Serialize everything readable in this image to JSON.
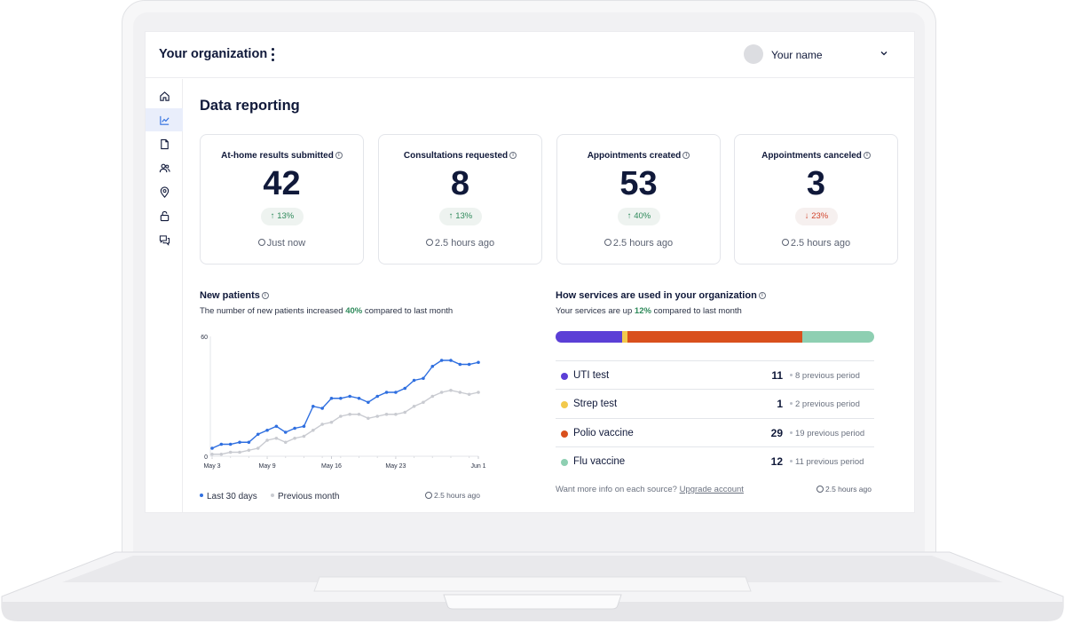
{
  "header": {
    "org_title": "Your organization",
    "user_name": "Your name"
  },
  "sidebar": {
    "items": [
      {
        "icon": "home-icon"
      },
      {
        "icon": "chart-icon",
        "active": true
      },
      {
        "icon": "document-icon"
      },
      {
        "icon": "users-icon"
      },
      {
        "icon": "location-icon"
      },
      {
        "icon": "lock-icon"
      },
      {
        "icon": "chat-icon"
      }
    ]
  },
  "main": {
    "title": "Data reporting",
    "stats": [
      {
        "label": "At-home results submitted",
        "value": "42",
        "change": "13%",
        "direction": "up",
        "time": "Just now"
      },
      {
        "label": "Consultations requested",
        "value": "8",
        "change": "13%",
        "direction": "up",
        "time": "2.5 hours ago"
      },
      {
        "label": "Appointments created",
        "value": "53",
        "change": "40%",
        "direction": "up",
        "time": "2.5 hours ago"
      },
      {
        "label": "Appointments canceled",
        "value": "3",
        "change": "23%",
        "direction": "down",
        "time": "2.5 hours ago"
      }
    ],
    "new_patients": {
      "title": "New patients",
      "subtitle_pre": "The number of new patients increased ",
      "subtitle_value": "40%",
      "subtitle_post": " compared to last month",
      "legend_current": "Last 30 days",
      "legend_previous": "Previous month",
      "updated": "2.5 hours ago"
    },
    "services": {
      "title": "How services are used in your organization",
      "subtitle_pre": "Your services are up ",
      "subtitle_value": "12%",
      "subtitle_post": " compared to last month",
      "items": [
        {
          "name": "UTI test",
          "count": "11",
          "previous": "8 previous period",
          "color": "#5b3fd6"
        },
        {
          "name": "Strep test",
          "count": "1",
          "previous": "2 previous period",
          "color": "#f2c94c"
        },
        {
          "name": "Polio vaccine",
          "count": "29",
          "previous": "19 previous period",
          "color": "#d9501d"
        },
        {
          "name": "Flu vaccine",
          "count": "12",
          "previous": "11 previous period",
          "color": "#8ecfb2"
        }
      ],
      "footer_text": "Want more info on each source?",
      "footer_link": "Upgrade account",
      "updated": "2.5 hours ago"
    }
  },
  "chart_data": {
    "type": "line",
    "ylim": [
      0,
      60
    ],
    "y_ticks": [
      "0",
      "60"
    ],
    "x_ticks": [
      "May 3",
      "May 9",
      "May 16",
      "May 23",
      "Jun 1"
    ],
    "x": [
      1,
      2,
      3,
      4,
      5,
      6,
      7,
      8,
      9,
      10,
      11,
      12,
      13,
      14,
      15,
      16,
      17,
      18,
      19,
      20,
      21,
      22,
      23,
      24,
      25,
      26,
      27,
      28,
      29,
      30
    ],
    "series": [
      {
        "name": "Last 30 days",
        "color": "#2f6fe0",
        "values": [
          4,
          6,
          6,
          7,
          7,
          11,
          13,
          15,
          12,
          14,
          15,
          25,
          24,
          29,
          29,
          30,
          29,
          27,
          30,
          32,
          32,
          34,
          38,
          39,
          45,
          48,
          48,
          46,
          46,
          47
        ]
      },
      {
        "name": "Previous month",
        "color": "#c9cbd1",
        "values": [
          1,
          1,
          2,
          2,
          3,
          4,
          8,
          9,
          7,
          9,
          10,
          13,
          16,
          17,
          20,
          21,
          21,
          19,
          20,
          21,
          21,
          22,
          25,
          27,
          30,
          32,
          33,
          32,
          31,
          32
        ]
      }
    ]
  }
}
